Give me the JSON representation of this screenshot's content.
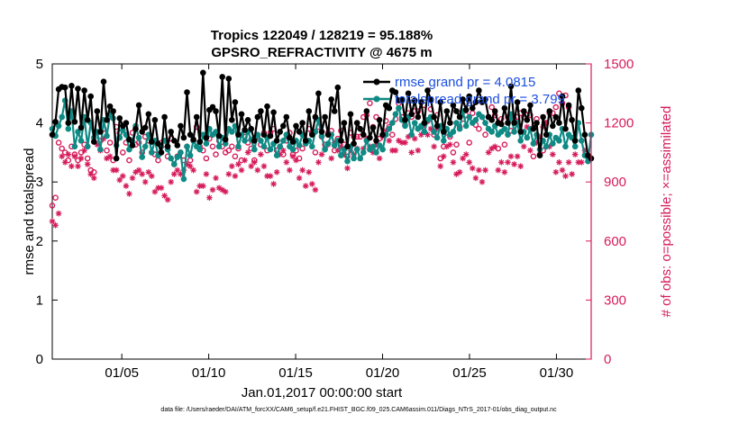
{
  "colors": {
    "rmse": "#000000",
    "spread": "#0f8a84",
    "obs": "#d61c5b",
    "legend_text": "#1b4fe0",
    "axis": "#000000"
  },
  "chart_data": {
    "type": "line",
    "title": "Tropics 122049 / 128219 = 95.188%",
    "subtitle": "GPSRO_REFRACTIVITY @ 4675 m",
    "xlabel": "Jan.01,2017 00:00:00 start",
    "ylabel_left": "rmse and totalspread",
    "ylabel_right": "# of obs: o=possible; ×=assimilated",
    "xlim": [
      1.0,
      32.0
    ],
    "ylim_left": [
      0,
      5
    ],
    "ylim_right": [
      0,
      1500
    ],
    "xticks": [
      {
        "value": 5,
        "label": "01/05"
      },
      {
        "value": 10,
        "label": "01/10"
      },
      {
        "value": 15,
        "label": "01/15"
      },
      {
        "value": 20,
        "label": "01/20"
      },
      {
        "value": 25,
        "label": "01/25"
      },
      {
        "value": 30,
        "label": "01/30"
      }
    ],
    "yticks_left": [
      "0",
      "1",
      "2",
      "3",
      "4",
      "5"
    ],
    "yticks_right": [
      "0",
      "300",
      "600",
      "900",
      "1200",
      "1500"
    ],
    "legend": [
      {
        "label": "rmse grand pr = 4.0815",
        "series": "rmse"
      },
      {
        "label": "totalspread grand pr = 3.799",
        "series": "totalspread"
      }
    ],
    "series": [
      {
        "name": "rmse",
        "axis": "left",
        "values": [
          3.8,
          4.02,
          4.57,
          4.61,
          4.6,
          4.0,
          4.63,
          4.02,
          4.58,
          3.92,
          4.55,
          4.05,
          4.45,
          3.68,
          4.2,
          3.85,
          4.7,
          4.05,
          4.28,
          4.2,
          3.4,
          4.08,
          3.95,
          4.0,
          3.72,
          3.62,
          3.9,
          4.3,
          3.85,
          3.92,
          4.15,
          3.68,
          4.05,
          3.65,
          3.5,
          4.1,
          3.6,
          3.85,
          3.7,
          3.62,
          3.95,
          3.75,
          4.52,
          3.8,
          3.72,
          4.1,
          3.68,
          4.85,
          3.75,
          4.22,
          4.27,
          4.2,
          3.78,
          4.78,
          3.72,
          4.75,
          4.05,
          4.35,
          3.8,
          4.15,
          3.88,
          4.05,
          3.9,
          3.7,
          4.1,
          4.2,
          3.8,
          4.28,
          3.78,
          4.18,
          3.7,
          3.85,
          3.95,
          4.1,
          3.75,
          3.68,
          3.95,
          3.85,
          4.0,
          3.7,
          4.2,
          3.8,
          4.1,
          4.5,
          3.85,
          4.1,
          3.8,
          4.4,
          4.2,
          4.6,
          3.7,
          4.0,
          3.6,
          4.15,
          3.65,
          4.0,
          3.9,
          3.8,
          4.2,
          3.75,
          3.92,
          3.7,
          4.05,
          3.8,
          4.3,
          4.25,
          4.55,
          4.52,
          4.38,
          4.4,
          4.05,
          4.5,
          4.15,
          4.38,
          4.1,
          4.35,
          4.0,
          4.55,
          4.4,
          4.1,
          3.95,
          4.35,
          3.85,
          4.2,
          4.0,
          4.3,
          4.2,
          4.1,
          4.4,
          4.22,
          4.45,
          4.25,
          4.35,
          4.55,
          4.35,
          4.4,
          4.1,
          4.05,
          4.2,
          4.0,
          3.98,
          4.25,
          4.0,
          4.62,
          4.0,
          4.35,
          3.85,
          4.2,
          4.05,
          4.3,
          3.9,
          4.0,
          3.45,
          4.1,
          3.8,
          4.2,
          3.95,
          4.1,
          4.0,
          4.45,
          3.9,
          4.3,
          4.05,
          3.7,
          4.55,
          4.25,
          3.8,
          3.45,
          3.4
        ]
      },
      {
        "name": "totalspread",
        "axis": "left",
        "values": [
          3.9,
          3.78,
          3.95,
          4.1,
          4.38,
          3.9,
          4.2,
          3.6,
          3.85,
          3.7,
          4.1,
          3.6,
          4.0,
          3.75,
          3.85,
          3.55,
          4.05,
          3.78,
          4.15,
          4.08,
          3.62,
          3.75,
          3.88,
          3.8,
          3.55,
          3.68,
          3.95,
          3.75,
          3.42,
          3.6,
          3.8,
          3.5,
          3.7,
          3.45,
          3.6,
          3.7,
          3.55,
          3.4,
          3.3,
          3.42,
          3.5,
          3.05,
          3.6,
          3.45,
          3.7,
          3.6,
          3.55,
          3.8,
          3.65,
          3.9,
          3.8,
          3.85,
          3.6,
          3.75,
          3.65,
          3.9,
          3.85,
          3.95,
          3.6,
          3.8,
          3.7,
          3.85,
          3.72,
          3.55,
          3.8,
          3.7,
          3.6,
          3.75,
          3.55,
          3.65,
          3.45,
          3.6,
          3.7,
          3.8,
          3.6,
          3.55,
          3.7,
          3.62,
          3.8,
          3.65,
          3.7,
          3.6,
          3.85,
          4.05,
          3.78,
          3.55,
          3.65,
          3.8,
          3.62,
          3.7,
          3.45,
          3.55,
          3.35,
          3.6,
          3.4,
          3.55,
          3.4,
          3.5,
          3.7,
          3.55,
          3.6,
          3.5,
          3.62,
          3.55,
          3.8,
          3.9,
          4.0,
          4.15,
          4.25,
          4.05,
          3.95,
          4.1,
          3.8,
          4.0,
          3.9,
          3.95,
          3.85,
          4.05,
          4.1,
          3.85,
          3.75,
          3.95,
          3.7,
          3.9,
          3.8,
          3.85,
          4.0,
          3.9,
          4.2,
          3.95,
          4.1,
          4.0,
          4.05,
          4.15,
          4.1,
          4.0,
          3.9,
          3.85,
          3.95,
          3.8,
          3.85,
          3.9,
          3.8,
          4.15,
          3.85,
          4.0,
          3.7,
          3.85,
          3.75,
          3.9,
          3.65,
          3.8,
          3.55,
          3.7,
          3.6,
          3.8,
          3.65,
          3.75,
          3.7,
          3.9,
          3.6,
          3.8,
          3.75,
          3.6,
          4.0,
          3.7,
          3.45,
          3.35,
          3.8
        ]
      },
      {
        "name": "obs_possible",
        "axis": "right",
        "values": [
          780,
          820,
          1100,
          1070,
          1050,
          1010,
          1080,
          1040,
          1010,
          1050,
          1090,
          1020,
          960,
          950,
          1150,
          1110,
          1170,
          1060,
          1100,
          1010,
          1180,
          1150,
          1050,
          1100,
          1010,
          1150,
          1090,
          1100,
          1050,
          1130,
          1110,
          1050,
          1040,
          1010,
          1100,
          1090,
          1030,
          1120,
          990,
          1030,
          1050,
          1010,
          1080,
          1010,
          1110,
          1180,
          1080,
          1060,
          1020,
          1120,
          1080,
          1040,
          1110,
          1080,
          1050,
          1060,
          1080,
          1030,
          1070,
          1010,
          1130,
          1100,
          1070,
          1010,
          1130,
          1090,
          1150,
          1060,
          1150,
          1170,
          1060,
          1080,
          1040,
          1110,
          1150,
          1040,
          1060,
          1020,
          1070,
          1110,
          1170,
          1150,
          1050,
          1180,
          1130,
          1090,
          1150,
          1160,
          1060,
          1120,
          1160,
          1090,
          1030,
          1150,
          1130,
          1130,
          1130,
          1230,
          1240,
          1300,
          1180,
          1230,
          1120,
          1140,
          1210,
          1180,
          1140,
          1220,
          1300,
          1230,
          1190,
          1250,
          1230,
          1260,
          1260,
          1180,
          1290,
          1210,
          1270,
          1140,
          1240,
          1020,
          1080,
          1150,
          1130,
          1050,
          1090,
          1180,
          1220,
          1240,
          1100,
          1250,
          1190,
          1170,
          1230,
          1140,
          1230,
          1280,
          1240,
          1070,
          1220,
          1090,
          1230,
          1160,
          1220,
          1230,
          1250,
          1230,
          1240,
          1240,
          1030,
          1220,
          1040,
          1060,
          1200,
          1250,
          1250,
          1280,
          1350,
          1300,
          1340,
          1280
        ]
      },
      {
        "name": "obs_assimilated",
        "axis": "right",
        "values": [
          700,
          680,
          740,
          1030,
          1000,
          1040,
          980,
          1030,
          980,
          1020,
          1060,
          990,
          940,
          920,
          1090,
          1060,
          1120,
          1020,
          1030,
          960,
          960,
          910,
          930,
          880,
          840,
          920,
          950,
          960,
          940,
          900,
          950,
          930,
          850,
          870,
          870,
          830,
          810,
          900,
          940,
          960,
          940,
          960,
          990,
          980,
          960,
          850,
          880,
          880,
          940,
          820,
          860,
          920,
          870,
          860,
          850,
          940,
          980,
          930,
          990,
          960,
          1010,
          1050,
          980,
          1000,
          960,
          1040,
          980,
          930,
          930,
          890,
          950,
          1040,
          1060,
          1000,
          960,
          1030,
          1010,
          920,
          960,
          880,
          950,
          890,
          860,
          1000,
          1040,
          1070,
          1090,
          1020,
          1100,
          1060,
          1080,
          1040,
          970,
          1060,
          1040,
          1070,
          1020,
          1070,
          1120,
          1080,
          1050,
          1090,
          1020,
          1130,
          1160,
          1110,
          1060,
          1060,
          1110,
          1100,
          1100,
          1130,
          1050,
          1120,
          1060,
          1140,
          1190,
          1140,
          1170,
          1080,
          1170,
          980,
          1030,
          1080,
          1090,
          1000,
          940,
          950,
          1020,
          1040,
          1000,
          970,
          920,
          960,
          900,
          960,
          1050,
          1070,
          1080,
          960,
          1000,
          950,
          1000,
          1030,
          990,
          1030,
          980,
          1080,
          1180,
          1060,
          1180,
          1100,
          1130,
          1180,
          1200,
          1080,
          1040,
          950,
          1000,
          960,
          930,
          1000,
          940,
          1040,
          1000,
          1000,
          1060
        ]
      }
    ]
  },
  "footer": "data file: /Users/raeder/DAI/ATM_forcXX/CAM6_setup/f.e21.FHIST_BGC.f09_025.CAM6assim.011/Diags_NTrS_2017-01/obs_diag_output.nc"
}
